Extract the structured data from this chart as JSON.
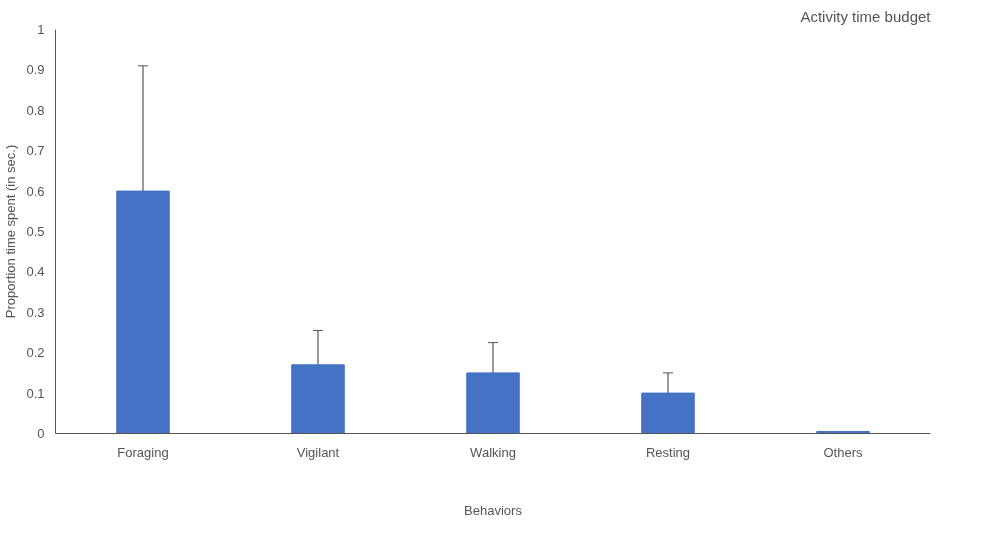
{
  "chart_data": {
    "type": "bar",
    "title": "Activity time budget",
    "xlabel": "Behaviors",
    "ylabel": "Proportion time spent (in sec.)",
    "categories": [
      "Foraging",
      "Vigilant",
      "Walking",
      "Resting",
      "Others"
    ],
    "values": [
      0.6,
      0.17,
      0.15,
      0.1,
      0.005
    ],
    "errors": [
      0.31,
      0.085,
      0.075,
      0.05,
      null
    ],
    "color": "#4472c4",
    "ylim": [
      0,
      1
    ],
    "yticks": [
      0,
      0.1,
      0.2,
      0.3,
      0.4,
      0.5,
      0.6,
      0.7,
      0.8,
      0.9,
      1
    ],
    "grid": false
  }
}
